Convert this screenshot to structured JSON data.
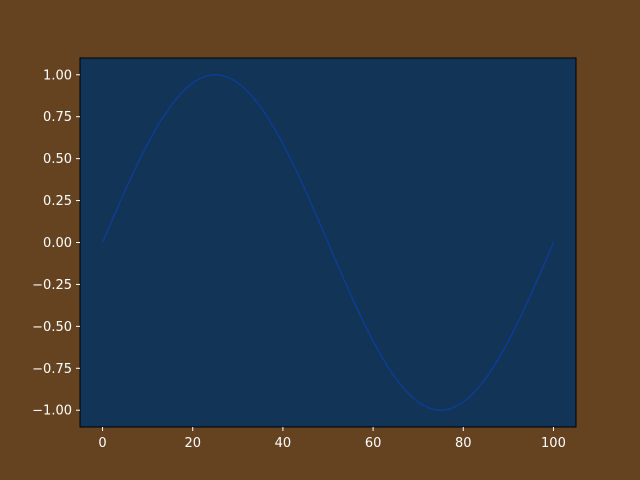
{
  "colors": {
    "figure_background": "#654321",
    "axes_background": "#123456",
    "line": "#0e3c8f",
    "text": "#ffffff",
    "axes_edge": "#000000"
  },
  "chart_data": {
    "type": "line",
    "title": "",
    "xlabel": "",
    "ylabel": "",
    "function": "sin(2*pi*x/100)",
    "x_range": [
      0,
      100
    ],
    "xlim": [
      -5,
      105
    ],
    "ylim": [
      -1.1,
      1.1
    ],
    "grid": false,
    "legend": "none",
    "x_ticks": [
      0,
      20,
      40,
      60,
      80,
      100
    ],
    "x_tick_labels": [
      "0",
      "20",
      "40",
      "60",
      "80",
      "100"
    ],
    "y_ticks": [
      1.0,
      0.75,
      0.5,
      0.25,
      0.0,
      -0.25,
      -0.5,
      -0.75,
      -1.0
    ],
    "y_tick_labels": [
      "1.00",
      "0.75",
      "0.50",
      "0.25",
      "0.00",
      "−0.25",
      "−0.50",
      "−0.75",
      "−1.00"
    ],
    "series": [
      {
        "x": [
          0,
          5,
          10,
          15,
          20,
          25,
          30,
          35,
          40,
          45,
          50,
          55,
          60,
          65,
          70,
          75,
          80,
          85,
          90,
          95,
          100
        ],
        "y": [
          0.0,
          0.309,
          0.588,
          0.809,
          0.951,
          1.0,
          0.951,
          0.809,
          0.588,
          0.309,
          0.0,
          -0.309,
          -0.588,
          -0.809,
          -0.951,
          -1.0,
          -0.951,
          -0.809,
          -0.588,
          -0.309,
          0.0
        ]
      }
    ]
  }
}
